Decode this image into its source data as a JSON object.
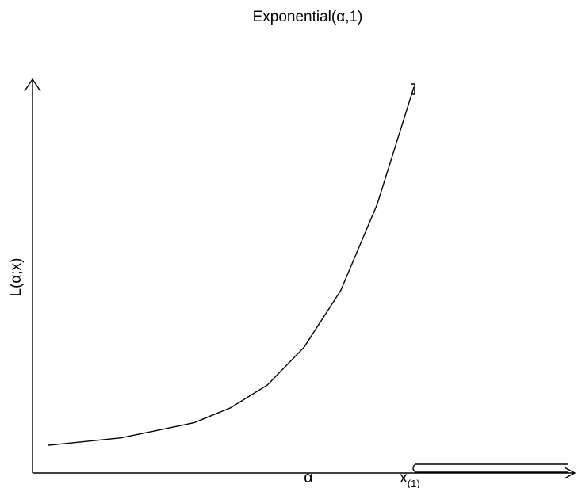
{
  "chart_data": {
    "type": "line",
    "title": "Exponential(α,1)",
    "xlabel": "α",
    "ylabel": "L(α;x)",
    "x_marker_base": "x",
    "x_marker_subscript": "(1)",
    "grid": false,
    "series": [
      {
        "values": [
          {
            "x": 0.0,
            "y": 0.05
          },
          {
            "x": 0.1,
            "y": 0.06
          },
          {
            "x": 0.2,
            "y": 0.07
          },
          {
            "x": 0.3,
            "y": 0.09
          },
          {
            "x": 0.4,
            "y": 0.11
          },
          {
            "x": 0.5,
            "y": 0.15
          },
          {
            "x": 0.6,
            "y": 0.21
          },
          {
            "x": 0.7,
            "y": 0.31
          },
          {
            "x": 0.8,
            "y": 0.46
          },
          {
            "x": 0.9,
            "y": 0.69
          },
          {
            "x": 1.0,
            "y": 1.0
          }
        ]
      }
    ]
  }
}
